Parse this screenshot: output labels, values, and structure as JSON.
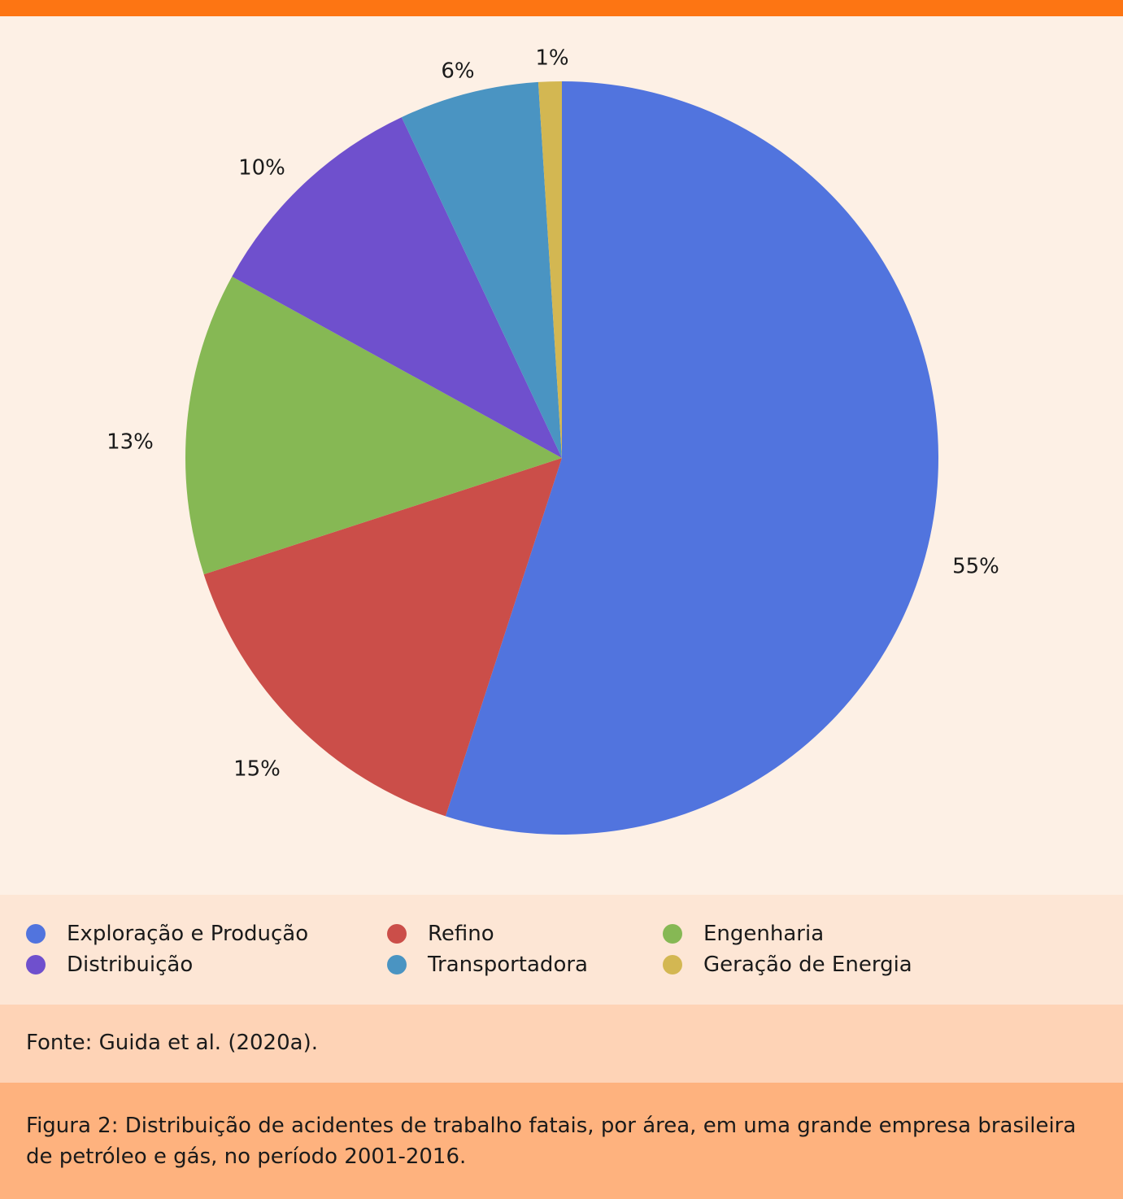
{
  "chart_data": {
    "type": "pie",
    "categories": [
      "Exploração e Produção",
      "Refino",
      "Engenharia",
      "Distribuição",
      "Transportadora",
      "Geração de Energia"
    ],
    "values": [
      55,
      15,
      13,
      10,
      6,
      1
    ],
    "labels": [
      "55%",
      "15%",
      "13%",
      "10%",
      "6%",
      "1%"
    ],
    "colors": [
      "#5174de",
      "#cb4e49",
      "#86b854",
      "#6f50cd",
      "#4a94c2",
      "#d3b752"
    ],
    "legend_placement": "bottom"
  },
  "legend": {
    "items": [
      {
        "label": "Exploração e Produção",
        "color": "#5174de"
      },
      {
        "label": "Refino",
        "color": "#cb4e49"
      },
      {
        "label": "Engenharia",
        "color": "#86b854"
      },
      {
        "label": "Distribuição",
        "color": "#6f50cd"
      },
      {
        "label": "Transportadora",
        "color": "#4a94c2"
      },
      {
        "label": "Geração de Energia",
        "color": "#d3b752"
      }
    ]
  },
  "source": "Fonte: Guida et al. (2020a).",
  "caption": "Figura 2: Distribuição de acidentes de trabalho fatais, por área, em uma grande empresa brasileira de petróleo e gás, no período 2001-2016."
}
